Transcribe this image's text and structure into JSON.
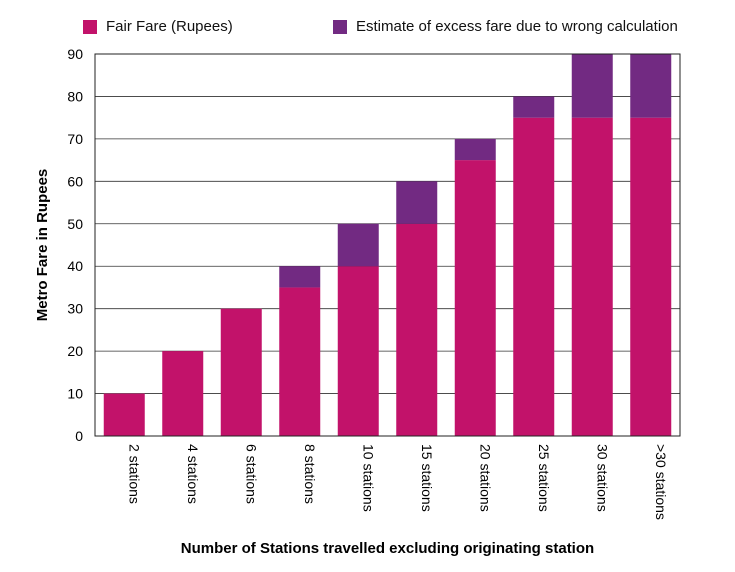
{
  "chart_data": {
    "type": "bar",
    "stacked": true,
    "title": "",
    "xlabel": "Number of Stations travelled excluding originating station",
    "ylabel": "Metro Fare in Rupees",
    "ylim": [
      0,
      90
    ],
    "yticks": [
      0,
      10,
      20,
      30,
      40,
      50,
      60,
      70,
      80,
      90
    ],
    "grid": true,
    "legend_position": "top",
    "categories": [
      "2 stations",
      "4 stations",
      "6 stations",
      "8 stations",
      "10 stations",
      "15 stations",
      "20 stations",
      "25 stations",
      "30 stations",
      ">30 stations"
    ],
    "series": [
      {
        "name": "Fair Fare (Rupees)",
        "color": "#C2126A",
        "values": [
          10,
          20,
          30,
          35,
          40,
          50,
          65,
          75,
          75,
          75
        ]
      },
      {
        "name": "Estimate of excess fare due to wrong calculation",
        "color": "#722A82",
        "values": [
          0,
          0,
          0,
          5,
          10,
          10,
          5,
          5,
          15,
          15
        ]
      }
    ]
  }
}
